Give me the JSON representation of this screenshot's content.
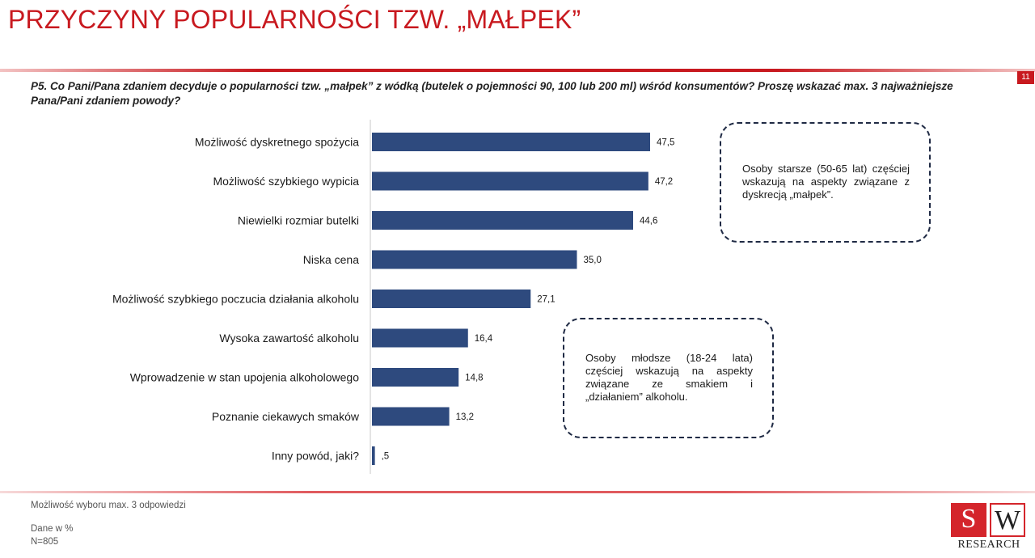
{
  "header": {
    "title": "PRZYCZYNY POPULARNOŚCI TZW. „MAŁPEK”",
    "page_number": "11",
    "question": "P5. Co Pani/Pana zdaniem decyduje o popularności tzw. „małpek” z wódką (butelek o pojemności 90, 100 lub 200 ml) wśród konsumentów? Proszę wskazać max. 3 najważniejsze Pana/Pani zdaniem powody?"
  },
  "chart_data": {
    "type": "bar",
    "orientation": "horizontal",
    "categories": [
      "Możliwość dyskretnego spożycia",
      "Możliwość szybkiego wypicia",
      "Niewielki rozmiar butelki",
      "Niska cena",
      "Możliwość szybkiego poczucia działania alkoholu",
      "Wysoka zawartość alkoholu",
      "Wprowadzenie w stan upojenia alkoholowego",
      "Poznanie ciekawych smaków",
      "Inny powód, jaki?"
    ],
    "values": [
      47.5,
      47.2,
      44.6,
      35.0,
      27.1,
      16.4,
      14.8,
      13.2,
      0.5
    ],
    "value_labels": [
      "47,5",
      "47,2",
      "44,6",
      "35,0",
      "27,1",
      "16,4",
      "14,8",
      "13,2",
      ",5"
    ],
    "bar_color": "#2e4a7e",
    "xlim": [
      0,
      60
    ],
    "grid": false,
    "legend": "none"
  },
  "callouts": [
    "Osoby starsze (50-65 lat) częściej wskazują na aspekty związane z dyskrecją „małpek”.",
    "Osoby młodsze (18-24 lata) częściej wskazują na aspekty związane ze smakiem i „działaniem” alkoholu."
  ],
  "footer": {
    "note": "Możliwość wyboru max. 3 odpowiedzi",
    "unit": "Dane w %",
    "sample": "N=805",
    "logo_s": "S",
    "logo_w": "W",
    "logo_text": "RESEARCH"
  },
  "colors": {
    "accent": "#c8191f",
    "bar": "#2e4a7e",
    "callout_border": "#1f2a44"
  }
}
